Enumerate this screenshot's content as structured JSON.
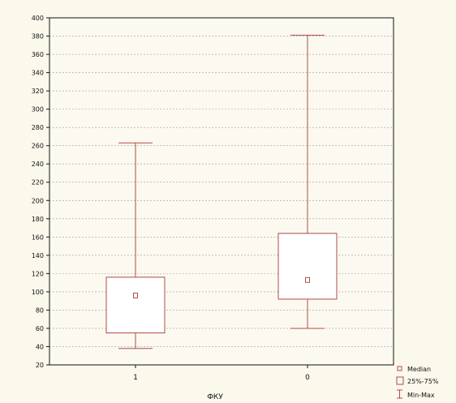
{
  "chart_data": {
    "type": "boxplot",
    "xlabel": "ФКУ",
    "ylabel": "",
    "ylim": [
      20,
      400
    ],
    "yticks": [
      20,
      40,
      60,
      80,
      100,
      120,
      140,
      160,
      180,
      200,
      220,
      240,
      260,
      280,
      300,
      320,
      340,
      360,
      380,
      400
    ],
    "grid": true,
    "legend_position": "bottom-right",
    "box_color": "#b04a4a",
    "categories": [
      "1",
      "0"
    ],
    "boxes": [
      {
        "category": "1",
        "min": 38,
        "q1": 55,
        "median": 96,
        "q3": 116,
        "max": 263
      },
      {
        "category": "0",
        "min": 60,
        "q1": 92,
        "median": 113,
        "q3": 164,
        "max": 381
      }
    ],
    "legend": [
      {
        "symbol": "median-marker",
        "label": "Median"
      },
      {
        "symbol": "box",
        "label": "25%-75%"
      },
      {
        "symbol": "whisker",
        "label": "Min-Max"
      }
    ]
  }
}
